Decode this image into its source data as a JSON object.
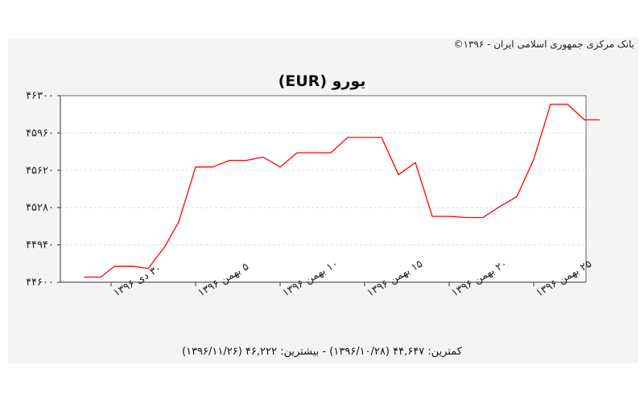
{
  "copyright": "بانک مرکزی جمهوری اسلامی ایران - ۱۳۹۶©",
  "chart_data": {
    "type": "line",
    "title": "یورو (EUR)",
    "xlabel": "",
    "ylabel": "",
    "ylim": [
      44600,
      46300
    ],
    "yticks": [
      44600,
      44940,
      45280,
      45620,
      45960,
      46300
    ],
    "ytick_labels": [
      "۴۴۶۰۰",
      "۴۴۹۴۰",
      "۴۵۲۸۰",
      "۴۵۶۲۰",
      "۴۵۹۶۰",
      "۴۶۳۰۰"
    ],
    "xticks": [
      {
        "label": "۳۰ دی ۱۳۹۶",
        "day": 1
      },
      {
        "label": "۵ بهمن ۱۳۹۶",
        "day": 6
      },
      {
        "label": "۱۰ بهمن ۱۳۹۶",
        "day": 11
      },
      {
        "label": "۱۵ بهمن ۱۳۹۶",
        "day": 16
      },
      {
        "label": "۲۰ بهمن ۱۳۹۶",
        "day": 21
      },
      {
        "label": "۲۵ بهمن ۱۳۹۶",
        "day": 26
      }
    ],
    "grid": true,
    "line_color": "#ff0000",
    "series": [
      {
        "points": [
          [
            -0.6,
            44647
          ],
          [
            0.4,
            44647
          ],
          [
            1.2,
            44745
          ],
          [
            2.3,
            44745
          ],
          [
            3.2,
            44725
          ],
          [
            4.2,
            44930
          ],
          [
            5.0,
            45150
          ],
          [
            6.0,
            45650
          ],
          [
            7.0,
            45650
          ],
          [
            8.0,
            45710
          ],
          [
            9.0,
            45710
          ],
          [
            10.0,
            45740
          ],
          [
            11.0,
            45650
          ],
          [
            12.0,
            45780
          ],
          [
            13.0,
            45780
          ],
          [
            14.0,
            45780
          ],
          [
            15.0,
            45920
          ],
          [
            16.0,
            45920
          ],
          [
            17.0,
            45920
          ],
          [
            18.0,
            45580
          ],
          [
            19.0,
            45690
          ],
          [
            20.0,
            45200
          ],
          [
            21.0,
            45200
          ],
          [
            22.0,
            45190
          ],
          [
            23.0,
            45190
          ],
          [
            24.0,
            45290
          ],
          [
            25.0,
            45380
          ],
          [
            26.0,
            45720
          ],
          [
            27.0,
            46222
          ],
          [
            28.0,
            46222
          ],
          [
            29.0,
            46080
          ],
          [
            29.9,
            46080
          ]
        ]
      }
    ]
  },
  "stats": "کمترین: ۴۴,۶۴۷ (۱۳۹۶/۱۰/۲۸) - بیشترین: ۴۶,۲۲۲ (۱۳۹۶/۱۱/۲۶)"
}
